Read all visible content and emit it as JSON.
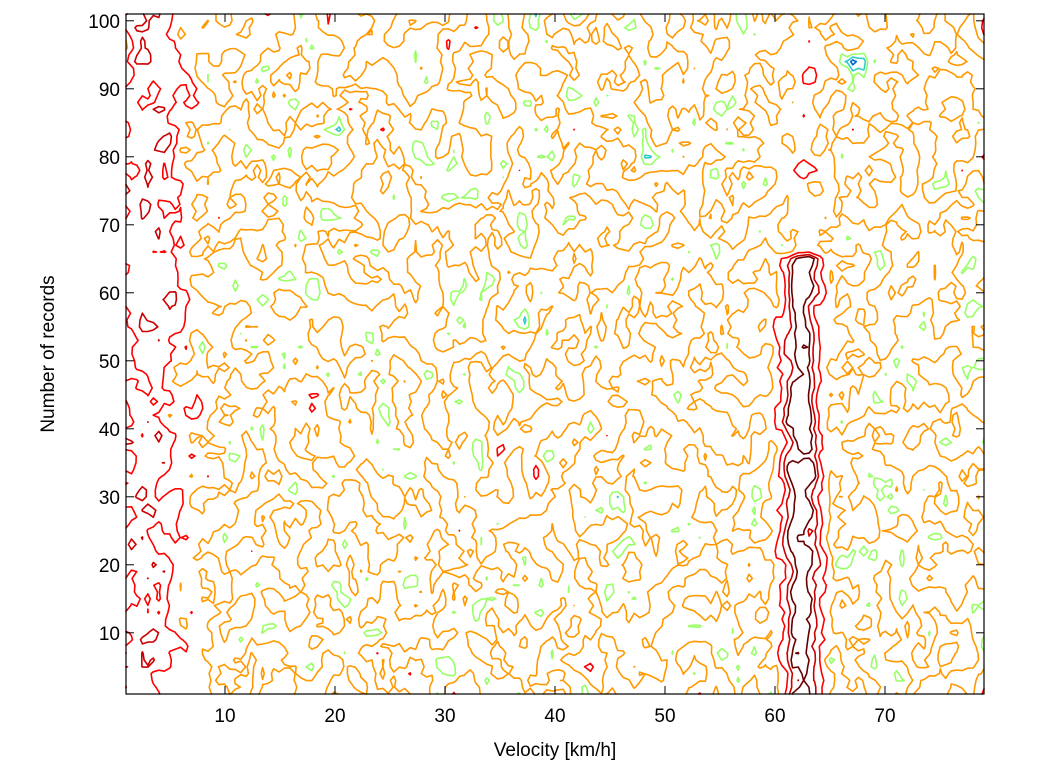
{
  "chart_data": {
    "type": "contour",
    "title": "",
    "xlabel": "Velocity [km/h]",
    "ylabel": "Number of records",
    "xlim": [
      1,
      79
    ],
    "ylim": [
      1,
      101
    ],
    "xticks": [
      10,
      20,
      30,
      40,
      50,
      60,
      70
    ],
    "yticks": [
      10,
      20,
      30,
      40,
      50,
      60,
      70,
      80,
      90,
      100
    ],
    "grid": false,
    "legend": "none",
    "colormap": [
      "#ff9900",
      "#ffcc33",
      "#99ff66",
      "#33cccc",
      "#0066cc",
      "#ff0000",
      "#cc0000",
      "#660000"
    ],
    "background": "#ffffff",
    "features": [
      {
        "name": "low-velocity band",
        "x_range": [
          1,
          8
        ],
        "y_range": [
          1,
          101
        ]
      },
      {
        "name": "high-density ridge",
        "x_range": [
          59,
          66
        ],
        "y_range": [
          1,
          66
        ]
      },
      {
        "name": "peak",
        "x": 67,
        "y": 94
      }
    ]
  }
}
